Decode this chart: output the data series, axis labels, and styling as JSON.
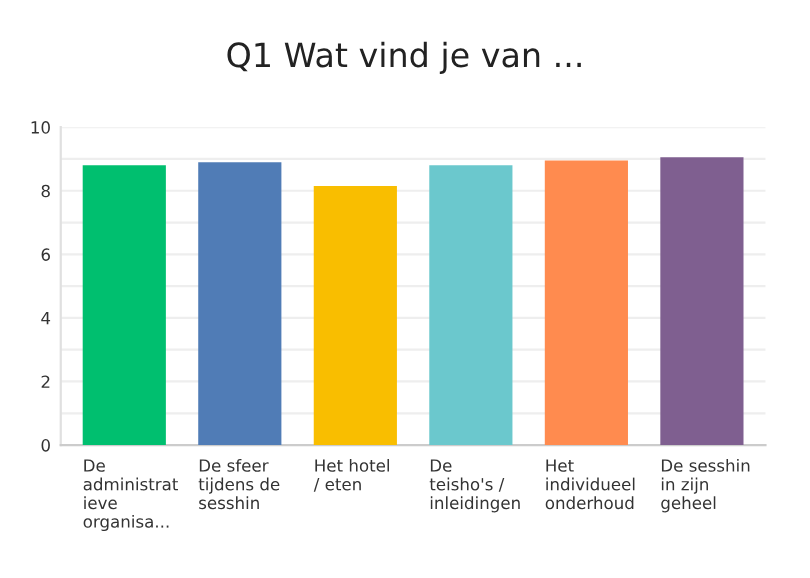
{
  "chart_data": {
    "type": "bar",
    "title": "Q1 Wat vind je van ...",
    "categories": [
      "De\nadministrat\nieve\norganisa...",
      "De sfeer\ntijdens de\nsesshin",
      "Het hotel\n/ eten",
      "De\nteisho's /\ninleidingen",
      "Het\nindividueel\nonderhoud",
      "De sesshin\nin zijn\ngeheel"
    ],
    "values": [
      8.8,
      8.9,
      8.15,
      8.8,
      8.95,
      9.05
    ],
    "colors": [
      "#00bf6f",
      "#507cb6",
      "#f9be00",
      "#6bc8cd",
      "#ff8b4f",
      "#7f5f90"
    ],
    "ylim": [
      0,
      10
    ],
    "yticks": [
      0,
      {
        "value": 1,
        "label": null
      },
      2,
      {
        "value": 3,
        "label": null
      },
      4,
      {
        "value": 5,
        "label": null
      },
      6,
      {
        "value": 7,
        "label": null
      },
      8,
      {
        "value": 9,
        "label": null
      },
      10
    ],
    "grid": "y"
  }
}
